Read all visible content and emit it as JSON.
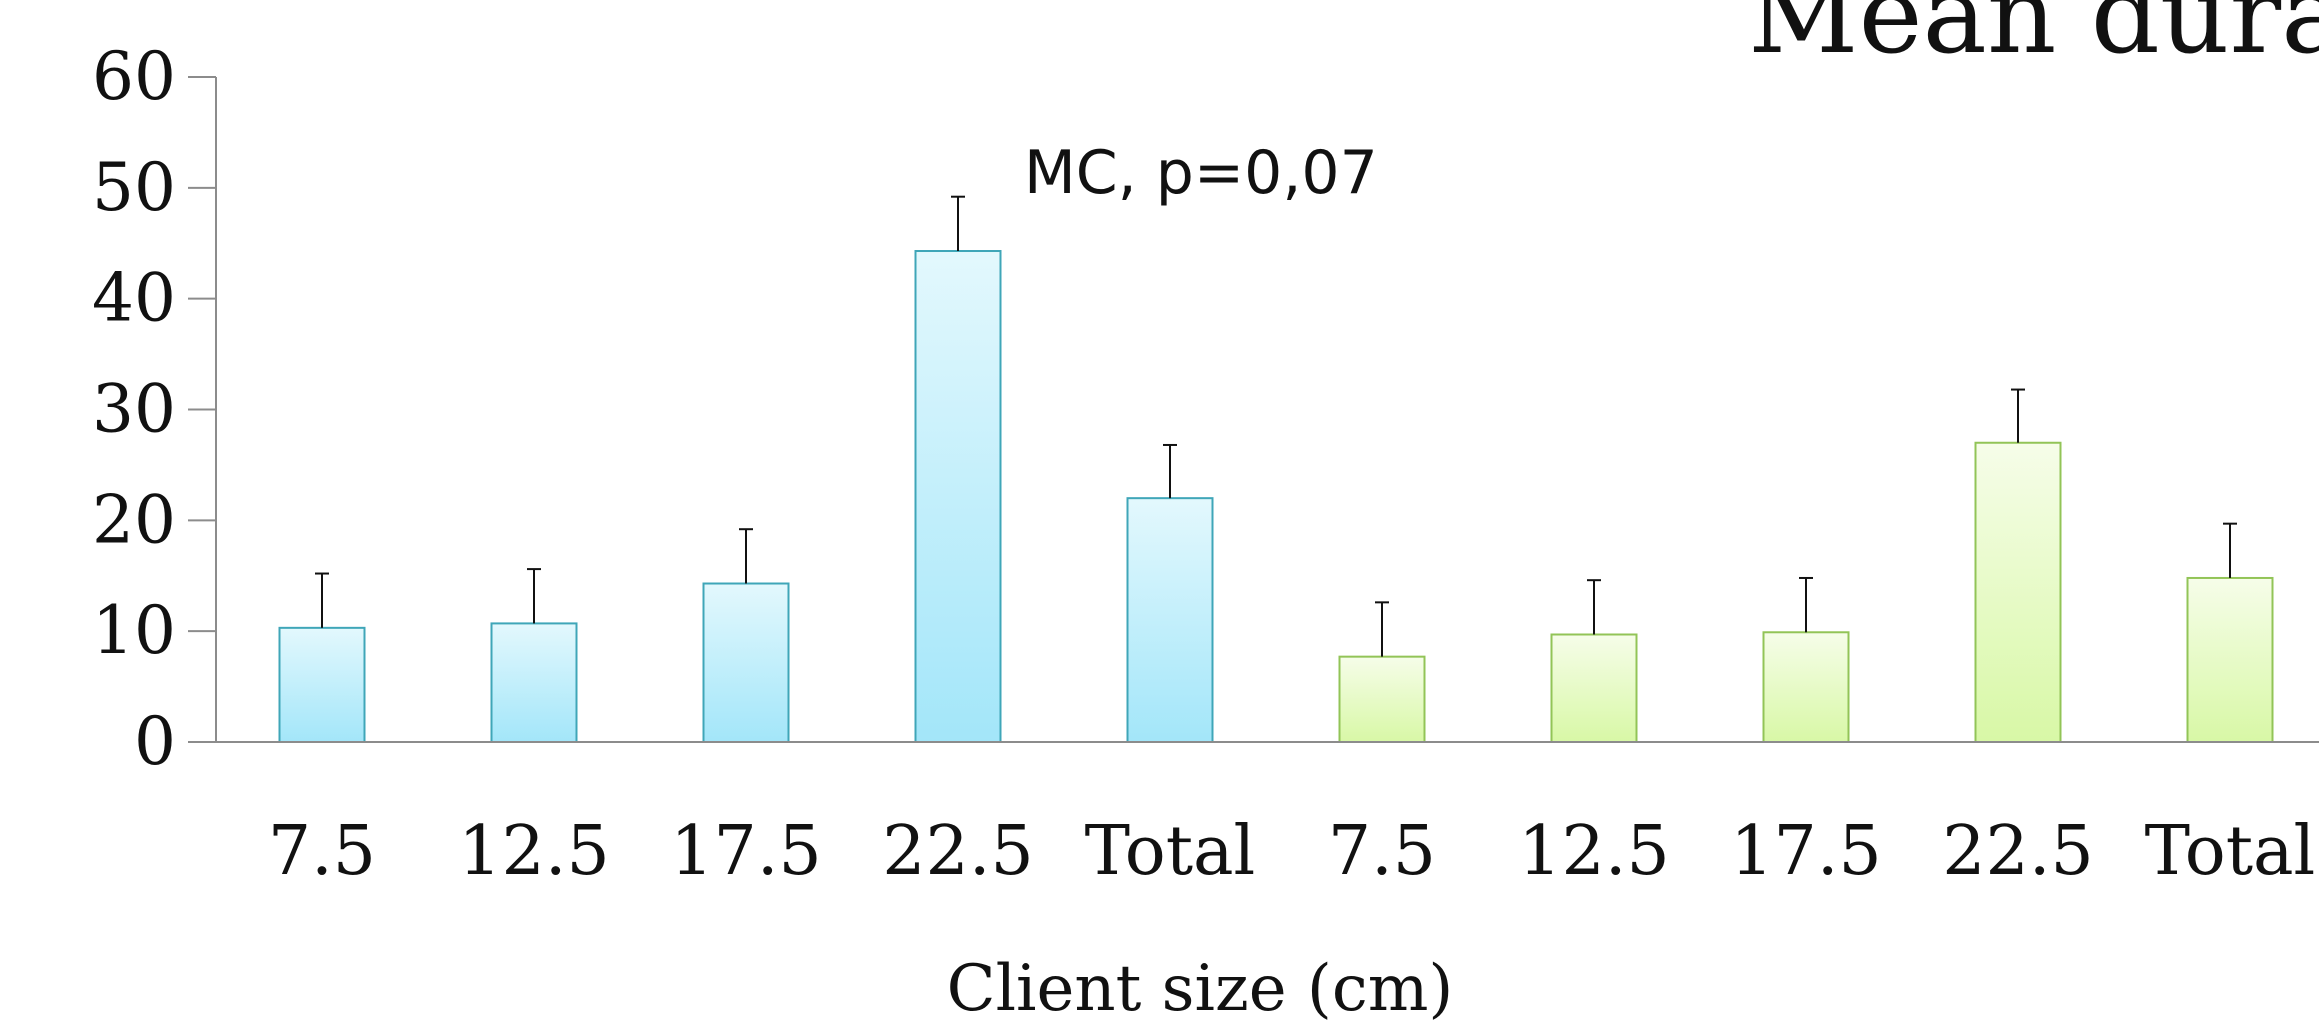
{
  "chart_data": {
    "type": "bar",
    "title": "Mean dura",
    "xlabel": "Client size (cm)",
    "ylabel": "",
    "ylim": [
      0,
      60
    ],
    "yticks": [
      "0",
      "10",
      "20",
      "30",
      "40",
      "50",
      "60"
    ],
    "grid": false,
    "legend": "none",
    "categories": [
      "7.5",
      "12.5",
      "17.5",
      "22.5",
      "Total",
      "7.5",
      "12.5",
      "17.5",
      "22.5",
      "Total"
    ],
    "values": [
      10.3,
      10.7,
      14.3,
      44.3,
      22.0,
      7.7,
      9.7,
      9.9,
      27.0,
      14.8
    ],
    "error_upper": [
      15.2,
      15.6,
      19.2,
      49.2,
      26.8,
      12.6,
      14.6,
      14.8,
      31.8,
      19.7
    ],
    "group_colors": [
      "#a9e8f9",
      "#a9e8f9",
      "#a9e8f9",
      "#a9e8f9",
      "#a9e8f9",
      "#d4f5a2",
      "#d4f5a2",
      "#d4f5a2",
      "#d4f5a2",
      "#d4f5a2"
    ],
    "annotations": [
      {
        "text": "MC, p=0,07",
        "category_index": 3,
        "y": 51.5
      }
    ]
  }
}
